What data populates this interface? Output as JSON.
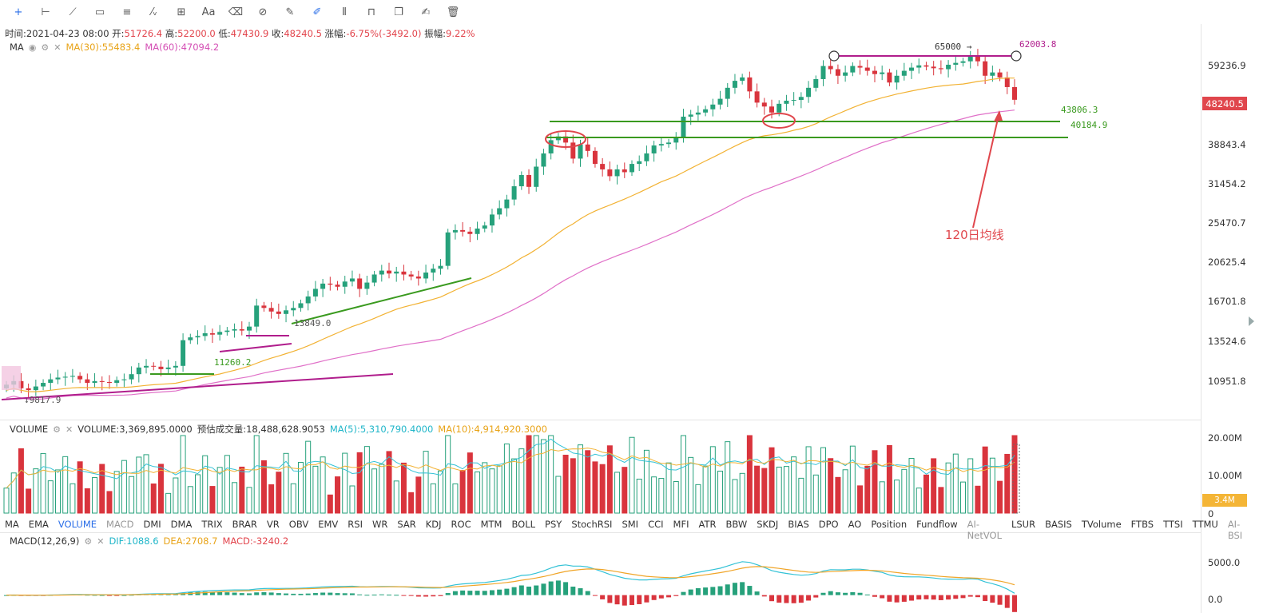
{
  "toolbar": {
    "tools": [
      {
        "name": "crosshair-tool",
        "glyph": "+"
      },
      {
        "name": "horizontal-line-tool",
        "glyph": "⊢"
      },
      {
        "name": "trend-line-tool",
        "glyph": "⟋"
      },
      {
        "name": "rectangle-tool",
        "glyph": "▭"
      },
      {
        "name": "parallel-lines-tool",
        "glyph": "≡"
      },
      {
        "name": "wave-tool",
        "glyph": "⁄ᵥ"
      },
      {
        "name": "measure-tool",
        "glyph": "⊞"
      },
      {
        "name": "text-tool",
        "glyph": "Aa"
      },
      {
        "name": "eraser-tool",
        "glyph": "⌫"
      },
      {
        "name": "magnet-tool",
        "glyph": "⊘"
      },
      {
        "name": "ruler-tool",
        "glyph": "✎"
      },
      {
        "name": "pen-tool",
        "glyph": "✐"
      },
      {
        "name": "bar-chart-tool",
        "glyph": "⫴"
      },
      {
        "name": "lock-tool",
        "glyph": "⊓"
      },
      {
        "name": "copy-tool",
        "glyph": "❐"
      },
      {
        "name": "edit-tool",
        "glyph": "✍"
      },
      {
        "name": "delete-tool",
        "glyph": "🗑"
      }
    ]
  },
  "ohlc": {
    "time_label": "时间:",
    "time": "2021-04-23 08:00",
    "open_label": "开:",
    "open": "51726.4",
    "high_label": "高:",
    "high": "52200.0",
    "low_label": "低:",
    "low": "47430.9",
    "close_label": "收:",
    "close": "48240.5",
    "change_label": "涨幅:",
    "change": "-6.75%(-3492.0)",
    "amp_label": "振幅:",
    "amp": "9.22%"
  },
  "ma_legend": {
    "name": "MA",
    "ma30": "MA(30):55483.4",
    "ma60": "MA(60):47094.2"
  },
  "volume_legend": {
    "name": "VOLUME",
    "value": "VOLUME:3,369,895.0000",
    "estimate": "预估成交量:18,488,628.9053",
    "ma5": "MA(5):5,310,790.4000",
    "ma10": "MA(10):4,914,920.3000"
  },
  "macd_legend": {
    "name": "MACD(12,26,9)",
    "dif": "DIF:1088.6",
    "dea": "DEA:2708.7",
    "macd": "MACD:-3240.2"
  },
  "price_axis": [
    "59236.9",
    "48240.5",
    "38843.4",
    "31454.2",
    "25470.7",
    "20625.4",
    "16701.8",
    "13524.6",
    "10951.8"
  ],
  "volume_axis": [
    "20.00M",
    "10.00M",
    "3.4M",
    "0"
  ],
  "macd_axis": [
    "5000.0",
    "0.0"
  ],
  "current_price": "48240.5",
  "current_volume": "3.4M",
  "annotations": {
    "p65000": "65000",
    "p62003": "62003.8",
    "p43806": "43806.3",
    "p40184": "40184.9",
    "p13849": "13849.0",
    "p11260": "11260.2",
    "p9817": "9817.9",
    "ma120": "120日均线"
  },
  "indicators": [
    {
      "label": "MA",
      "state": "normal"
    },
    {
      "label": "EMA",
      "state": "normal"
    },
    {
      "label": "VOLUME",
      "state": "on"
    },
    {
      "label": "MACD",
      "state": "dim"
    },
    {
      "label": "DMI",
      "state": "normal"
    },
    {
      "label": "DMA",
      "state": "normal"
    },
    {
      "label": "TRIX",
      "state": "normal"
    },
    {
      "label": "BRAR",
      "state": "normal"
    },
    {
      "label": "VR",
      "state": "normal"
    },
    {
      "label": "OBV",
      "state": "normal"
    },
    {
      "label": "EMV",
      "state": "normal"
    },
    {
      "label": "RSI",
      "state": "normal"
    },
    {
      "label": "WR",
      "state": "normal"
    },
    {
      "label": "SAR",
      "state": "normal"
    },
    {
      "label": "KDJ",
      "state": "normal"
    },
    {
      "label": "ROC",
      "state": "normal"
    },
    {
      "label": "MTM",
      "state": "normal"
    },
    {
      "label": "BOLL",
      "state": "normal"
    },
    {
      "label": "PSY",
      "state": "normal"
    },
    {
      "label": "StochRSI",
      "state": "normal"
    },
    {
      "label": "SMI",
      "state": "normal"
    },
    {
      "label": "CCI",
      "state": "normal"
    },
    {
      "label": "MFI",
      "state": "normal"
    },
    {
      "label": "ATR",
      "state": "normal"
    },
    {
      "label": "BBW",
      "state": "normal"
    },
    {
      "label": "SKDJ",
      "state": "normal"
    },
    {
      "label": "BIAS",
      "state": "normal"
    },
    {
      "label": "DPO",
      "state": "normal"
    },
    {
      "label": "AO",
      "state": "normal"
    },
    {
      "label": "Position",
      "state": "normal"
    },
    {
      "label": "Fundflow",
      "state": "normal"
    },
    {
      "label": "AI-NetVOL",
      "state": "dim"
    },
    {
      "label": "LSUR",
      "state": "normal"
    },
    {
      "label": "BASIS",
      "state": "normal"
    },
    {
      "label": "TVolume",
      "state": "normal"
    },
    {
      "label": "FTBS",
      "state": "normal"
    },
    {
      "label": "TTSI",
      "state": "normal"
    },
    {
      "label": "TTMU",
      "state": "normal"
    },
    {
      "label": "AI-BSI",
      "state": "dim"
    }
  ],
  "colors": {
    "up": "#26a17b",
    "down": "#d9343d",
    "ma30": "#f2b233",
    "ma60": "#e070c8",
    "macd_dif": "#33c2d6",
    "macd_dea": "#f0a528",
    "trend_green": "#3a9a1f",
    "trend_magenta": "#b01d8c",
    "annot_red": "#e0464c"
  },
  "chart_data": {
    "type": "candlestick",
    "close_series": [
      10200,
      10400,
      10000,
      9900,
      10100,
      10300,
      10500,
      10600,
      10650,
      10700,
      10500,
      10300,
      10400,
      10350,
      10300,
      10450,
      10500,
      10800,
      11200,
      11300,
      11250,
      11100,
      11200,
      11300,
      13000,
      13200,
      13300,
      13500,
      13400,
      13600,
      13700,
      13800,
      13700,
      14000,
      15700,
      15500,
      15200,
      15000,
      15300,
      15500,
      15900,
      16500,
      17200,
      17700,
      17600,
      17400,
      17900,
      18200,
      17200,
      17800,
      18600,
      19000,
      18700,
      18900,
      18600,
      18400,
      18200,
      18800,
      19200,
      19500,
      23400,
      23700,
      23500,
      23200,
      23900,
      24300,
      25800,
      26700,
      28000,
      30100,
      32000,
      30000,
      33500,
      36000,
      38700,
      39500,
      38200,
      35000,
      37800,
      36500,
      34000,
      33000,
      31800,
      33000,
      32500,
      34000,
      34500,
      36000,
      37600,
      37900,
      38200,
      39200,
      44000,
      44500,
      45000,
      45800,
      47000,
      48500,
      51500,
      53500,
      54500,
      50500,
      47500,
      46500,
      45000,
      47200,
      48000,
      48200,
      49000,
      51500,
      54000,
      58000,
      57000,
      55000,
      56000,
      58000,
      57500,
      56500,
      55500,
      56000,
      53000,
      55000,
      56500,
      57500,
      58200,
      57800,
      57300,
      57000,
      58400,
      59000,
      59500,
      61000,
      59500,
      55000,
      56000,
      54500,
      51700,
      48240
    ],
    "ma30_last": 55483.4,
    "ma60_last": 47094.2,
    "price_range": [
      9000,
      64000
    ],
    "volume_range": [
      0,
      20000000
    ],
    "macd_range": [
      -800,
      7000
    ]
  }
}
